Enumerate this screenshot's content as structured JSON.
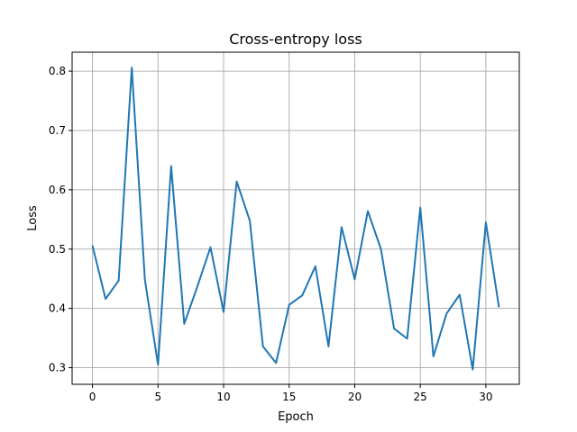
{
  "chart_data": {
    "type": "line",
    "title": "Cross-entropy loss",
    "xlabel": "Epoch",
    "ylabel": "Loss",
    "xlim": [
      -1.55,
      32.55
    ],
    "ylim": [
      0.272,
      0.832
    ],
    "xticks": [
      0,
      5,
      10,
      15,
      20,
      25,
      30
    ],
    "yticks": [
      0.3,
      0.4,
      0.5,
      0.6,
      0.7,
      0.8
    ],
    "grid": true,
    "series": [
      {
        "color": "#1f77b4",
        "x": [
          0,
          1,
          2,
          3,
          4,
          5,
          6,
          7,
          8,
          9,
          10,
          11,
          12,
          13,
          14,
          15,
          16,
          17,
          18,
          19,
          20,
          21,
          22,
          23,
          24,
          25,
          26,
          27,
          28,
          29,
          30,
          31
        ],
        "values": [
          0.506,
          0.416,
          0.447,
          0.806,
          0.448,
          0.305,
          0.64,
          0.374,
          0.437,
          0.503,
          0.394,
          0.614,
          0.548,
          0.336,
          0.308,
          0.406,
          0.422,
          0.471,
          0.336,
          0.537,
          0.449,
          0.564,
          0.5,
          0.366,
          0.349,
          0.57,
          0.319,
          0.391,
          0.423,
          0.297,
          0.545,
          0.402
        ]
      }
    ]
  }
}
